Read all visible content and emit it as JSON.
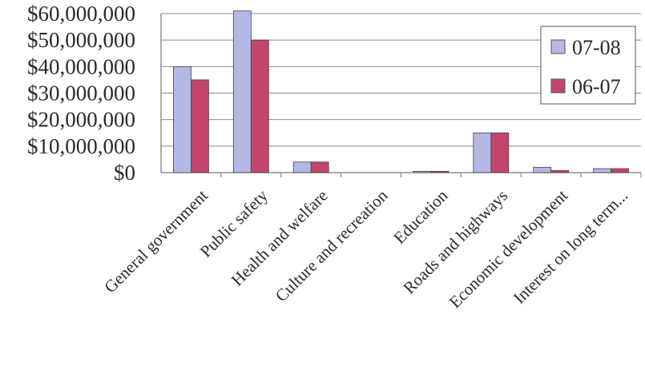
{
  "chart_data": {
    "type": "bar",
    "categories": [
      "General government",
      "Public safety",
      "Health and welfare",
      "Culture and recreation",
      "Education",
      "Roads and highways",
      "Economic development",
      "Interest on long term..."
    ],
    "series": [
      {
        "name": "07-08",
        "color": "#b4b8e6",
        "values": [
          40000000,
          61000000,
          4000000,
          0,
          500000,
          15000000,
          2000000,
          1500000
        ]
      },
      {
        "name": "06-07",
        "color": "#c4456c",
        "values": [
          35000000,
          50000000,
          4000000,
          0,
          500000,
          15000000,
          800000,
          1500000
        ]
      }
    ],
    "y_ticks": [
      "$0",
      "$10,000,000",
      "$20,000,000",
      "$30,000,000",
      "$40,000,000",
      "$50,000,000",
      "$60,000,000"
    ],
    "ylim": [
      0,
      60000000
    ],
    "grid": true,
    "legend_position": "right"
  }
}
